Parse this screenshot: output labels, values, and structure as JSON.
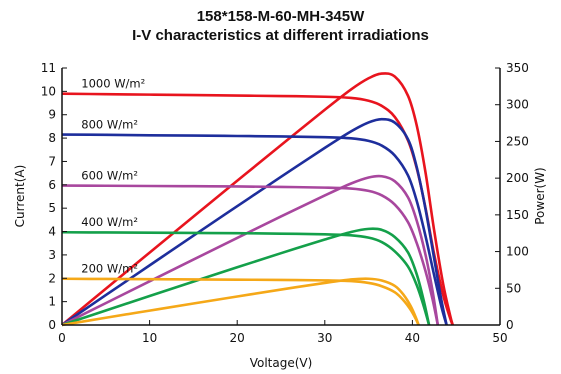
{
  "chart_data": {
    "type": "line",
    "title": "158*158-M-60-MH-345W",
    "subtitle": "I-V  characteristics at different irradiations",
    "xlabel": "Voltage(V)",
    "ylabel": "Current(A)",
    "y2label": "Power(W)",
    "xlim": [
      0,
      50
    ],
    "ylim": [
      0,
      11
    ],
    "y2lim": [
      0,
      350
    ],
    "xticks": [
      "0",
      "10",
      "20",
      "30",
      "40",
      "50"
    ],
    "yticks": [
      "0",
      "1",
      "2",
      "3",
      "4",
      "5",
      "6",
      "7",
      "8",
      "9",
      "10",
      "11"
    ],
    "y2ticks": [
      "0",
      "50",
      "100",
      "150",
      "200",
      "250",
      "300",
      "350"
    ],
    "grid": false,
    "series": [
      {
        "name": "1000 W/m²",
        "color": "#e8141e",
        "iv": [
          [
            0,
            9.9
          ],
          [
            5,
            9.88
          ],
          [
            10,
            9.86
          ],
          [
            15,
            9.84
          ],
          [
            20,
            9.82
          ],
          [
            25,
            9.8
          ],
          [
            30,
            9.77
          ],
          [
            33,
            9.72
          ],
          [
            35,
            9.6
          ],
          [
            36.5,
            9.38
          ],
          [
            38,
            8.9
          ],
          [
            39.5,
            7.9
          ],
          [
            40.5,
            6.7
          ],
          [
            41.5,
            5.0
          ],
          [
            42.5,
            3.0
          ],
          [
            43.5,
            1.3
          ],
          [
            44.3,
            0.3
          ],
          [
            44.6,
            0
          ]
        ],
        "pv": [
          [
            0,
            0
          ],
          [
            5,
            49.4
          ],
          [
            10,
            98.6
          ],
          [
            15,
            147.6
          ],
          [
            20,
            196.4
          ],
          [
            25,
            245
          ],
          [
            30,
            293.1
          ],
          [
            33,
            320.8
          ],
          [
            35,
            336
          ],
          [
            36.5,
            342.4
          ],
          [
            38,
            338.2
          ],
          [
            39.5,
            312.1
          ],
          [
            40.5,
            271.4
          ],
          [
            41.5,
            207.5
          ],
          [
            42.5,
            127.5
          ],
          [
            43.5,
            56.6
          ],
          [
            44.3,
            13.3
          ],
          [
            44.6,
            0
          ]
        ]
      },
      {
        "name": "800 W/m²",
        "color": "#1e2e9c",
        "iv": [
          [
            0,
            8.15
          ],
          [
            5,
            8.14
          ],
          [
            10,
            8.12
          ],
          [
            15,
            8.11
          ],
          [
            20,
            8.09
          ],
          [
            25,
            8.07
          ],
          [
            30,
            8.04
          ],
          [
            33,
            7.99
          ],
          [
            35,
            7.88
          ],
          [
            36.5,
            7.68
          ],
          [
            38,
            7.25
          ],
          [
            39.5,
            6.4
          ],
          [
            40.5,
            5.3
          ],
          [
            41.5,
            3.8
          ],
          [
            42.5,
            2.1
          ],
          [
            43.3,
            0.8
          ],
          [
            43.9,
            0
          ]
        ],
        "pv": [
          [
            0,
            0
          ],
          [
            5,
            40.7
          ],
          [
            10,
            81.2
          ],
          [
            15,
            121.7
          ],
          [
            20,
            161.8
          ],
          [
            25,
            201.8
          ],
          [
            30,
            241.2
          ],
          [
            33,
            263.7
          ],
          [
            35,
            275.8
          ],
          [
            36.5,
            280.3
          ],
          [
            38,
            275.5
          ],
          [
            39.5,
            252.8
          ],
          [
            40.5,
            214.7
          ],
          [
            41.5,
            157.7
          ],
          [
            42.5,
            89.3
          ],
          [
            43.3,
            34.6
          ],
          [
            43.9,
            0
          ]
        ]
      },
      {
        "name": "600 W/m²",
        "color": "#a8479e",
        "iv": [
          [
            0,
            5.97
          ],
          [
            5,
            5.96
          ],
          [
            10,
            5.95
          ],
          [
            15,
            5.94
          ],
          [
            20,
            5.93
          ],
          [
            25,
            5.91
          ],
          [
            30,
            5.88
          ],
          [
            33,
            5.84
          ],
          [
            35,
            5.74
          ],
          [
            36.5,
            5.55
          ],
          [
            38,
            5.15
          ],
          [
            39.5,
            4.4
          ],
          [
            40.5,
            3.5
          ],
          [
            41.5,
            2.3
          ],
          [
            42.3,
            1.1
          ],
          [
            42.9,
            0
          ]
        ],
        "pv": [
          [
            0,
            0
          ],
          [
            5,
            29.8
          ],
          [
            10,
            59.5
          ],
          [
            15,
            89.1
          ],
          [
            20,
            118.6
          ],
          [
            25,
            147.8
          ],
          [
            30,
            176.4
          ],
          [
            33,
            192.7
          ],
          [
            35,
            200.9
          ],
          [
            36.5,
            202.6
          ],
          [
            38,
            195.7
          ],
          [
            39.5,
            173.8
          ],
          [
            40.5,
            141.8
          ],
          [
            41.5,
            95.5
          ],
          [
            42.3,
            46.5
          ],
          [
            42.9,
            0
          ]
        ]
      },
      {
        "name": "400 W/m²",
        "color": "#14a04a",
        "iv": [
          [
            0,
            3.97
          ],
          [
            5,
            3.96
          ],
          [
            10,
            3.95
          ],
          [
            15,
            3.94
          ],
          [
            20,
            3.93
          ],
          [
            25,
            3.91
          ],
          [
            30,
            3.88
          ],
          [
            33,
            3.84
          ],
          [
            35,
            3.74
          ],
          [
            36.5,
            3.55
          ],
          [
            38,
            3.15
          ],
          [
            39.5,
            2.5
          ],
          [
            40.5,
            1.7
          ],
          [
            41.3,
            0.8
          ],
          [
            41.9,
            0
          ]
        ],
        "pv": [
          [
            0,
            0
          ],
          [
            5,
            19.8
          ],
          [
            10,
            39.5
          ],
          [
            15,
            59.1
          ],
          [
            20,
            78.6
          ],
          [
            25,
            97.8
          ],
          [
            30,
            116.4
          ],
          [
            33,
            126.7
          ],
          [
            35,
            130.9
          ],
          [
            36.5,
            129.6
          ],
          [
            38,
            119.7
          ],
          [
            39.5,
            98.8
          ],
          [
            40.5,
            68.9
          ],
          [
            41.3,
            33
          ],
          [
            41.9,
            0
          ]
        ]
      },
      {
        "name": "200 W/m²",
        "color": "#f5a818",
        "iv": [
          [
            0,
            1.98
          ],
          [
            5,
            1.97
          ],
          [
            10,
            1.96
          ],
          [
            15,
            1.95
          ],
          [
            20,
            1.94
          ],
          [
            25,
            1.93
          ],
          [
            30,
            1.91
          ],
          [
            33,
            1.88
          ],
          [
            35,
            1.8
          ],
          [
            36.5,
            1.66
          ],
          [
            38,
            1.4
          ],
          [
            39,
            1.05
          ],
          [
            39.8,
            0.65
          ],
          [
            40.4,
            0.25
          ],
          [
            40.7,
            0
          ]
        ],
        "pv": [
          [
            0,
            0
          ],
          [
            5,
            9.9
          ],
          [
            10,
            19.6
          ],
          [
            15,
            29.3
          ],
          [
            20,
            38.8
          ],
          [
            25,
            48.3
          ],
          [
            30,
            57.3
          ],
          [
            33,
            62
          ],
          [
            35,
            63
          ],
          [
            36.5,
            60.6
          ],
          [
            38,
            53.2
          ],
          [
            39,
            41
          ],
          [
            39.8,
            25.9
          ],
          [
            40.4,
            10.1
          ],
          [
            40.7,
            0
          ]
        ]
      }
    ]
  }
}
